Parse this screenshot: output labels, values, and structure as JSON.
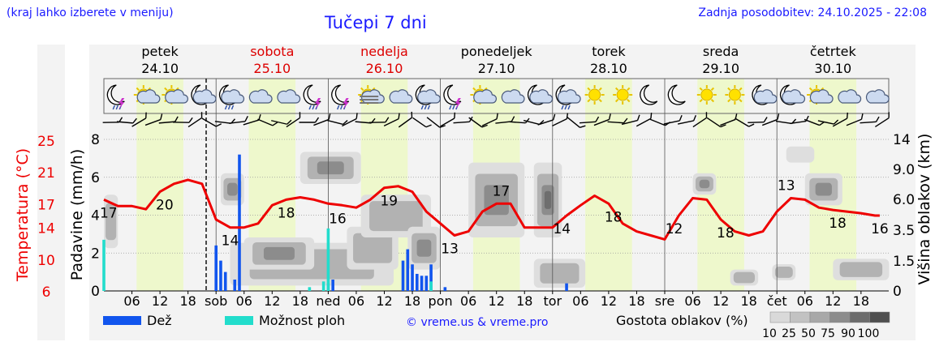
{
  "header": {
    "menu_hint": "(kraj lahko izberete v meniju)",
    "title": "Tučepi 7 dni",
    "updated": "Zadnja posodobitev: 24.10.2025 - 22:08"
  },
  "colors": {
    "weekday": "#000000",
    "weekend": "#dd0000",
    "temp_line": "#ee0000",
    "rain": "#1155ee",
    "showers": "#22ddcc",
    "daylight": "#eef8cc",
    "night": "#f4f4f4",
    "labels_blue": "#1a1aff"
  },
  "days": [
    {
      "name": "petek",
      "date": "24.10",
      "weekend": false
    },
    {
      "name": "sobota",
      "date": "25.10",
      "weekend": true
    },
    {
      "name": "nedelja",
      "date": "26.10",
      "weekend": true
    },
    {
      "name": "ponedeljek",
      "date": "27.10",
      "weekend": false
    },
    {
      "name": "torek",
      "date": "28.10",
      "weekend": false
    },
    {
      "name": "sreda",
      "date": "29.10",
      "weekend": false
    },
    {
      "name": "četrtek",
      "date": "30.10",
      "weekend": false
    }
  ],
  "weather_icons": [
    "moon-thunder-rain",
    "sun-cloud",
    "sun-cloud",
    "moon-cloud",
    "moon-cloud-rain",
    "cloud",
    "cloud",
    "moon-thunder-rain",
    "moon-thunder-rain",
    "sun-fog-cloud",
    "cloud",
    "moon-cloud-rain",
    "moon-thunder-rain",
    "sun-cloud",
    "cloud",
    "moon-cloud",
    "moon-cloud-rain",
    "sun",
    "sun",
    "moon",
    "moon",
    "sun",
    "sun",
    "moon-cloud",
    "moon-cloud",
    "sun-cloud",
    "cloud",
    "cloud"
  ],
  "chart_data": {
    "type": "line",
    "x_ticks": [
      "06",
      "12",
      "18",
      "sob",
      "06",
      "12",
      "18",
      "ned",
      "06",
      "12",
      "18",
      "pon",
      "06",
      "12",
      "18",
      "tor",
      "06",
      "12",
      "18",
      "sre",
      "06",
      "12",
      "18",
      "čet",
      "06",
      "12",
      "18"
    ],
    "y_left_axis": {
      "label": "Padavine (mm/h)",
      "ticks": [
        0,
        2,
        4,
        6,
        8
      ],
      "range": [
        0,
        8
      ]
    },
    "y_temp_axis": {
      "label": "Temperatura (°C)",
      "ticks": [
        6,
        10,
        14,
        17,
        21,
        25
      ]
    },
    "y_right_axis": {
      "label": "Višina oblakov (km)",
      "ticks": [
        "0",
        "1.5",
        "3.5",
        "6.0",
        "9.0",
        "14"
      ]
    },
    "temperature": {
      "hours": [
        0,
        3,
        6,
        9,
        12,
        15,
        18,
        21,
        24,
        27,
        30,
        33,
        36,
        39,
        42,
        45,
        48,
        51,
        54,
        57,
        60,
        63,
        66,
        69,
        72,
        75,
        78,
        81,
        84,
        87,
        90,
        93,
        96,
        99,
        102,
        105,
        108,
        111,
        114,
        117,
        120,
        123,
        126,
        129,
        132,
        135,
        138,
        141,
        144,
        147,
        150,
        153,
        156,
        159,
        162,
        165,
        166
      ],
      "values": [
        17.5,
        16.7,
        16.7,
        16.3,
        18.5,
        19.5,
        20.0,
        19.5,
        15.0,
        14.0,
        14.0,
        14.5,
        16.8,
        17.5,
        17.8,
        17.5,
        17.0,
        16.8,
        16.5,
        17.5,
        19.0,
        19.2,
        18.5,
        16.0,
        14.5,
        13.0,
        13.5,
        16.0,
        17.0,
        17.0,
        14.0,
        14.0,
        14.0,
        15.5,
        16.8,
        18.0,
        17.0,
        14.5,
        13.5,
        13.0,
        12.5,
        15.5,
        17.7,
        17.5,
        15.0,
        13.5,
        13.0,
        13.5,
        16.0,
        17.7,
        17.5,
        16.5,
        16.2,
        16.0,
        15.8,
        15.5,
        15.5
      ],
      "labels": [
        {
          "hour": 1,
          "value": "17"
        },
        {
          "hour": 13,
          "value": "20"
        },
        {
          "hour": 27,
          "value": "14"
        },
        {
          "hour": 39,
          "value": "18"
        },
        {
          "hour": 50,
          "value": "16"
        },
        {
          "hour": 61,
          "value": "19"
        },
        {
          "hour": 74,
          "value": "13"
        },
        {
          "hour": 85,
          "value": "17"
        },
        {
          "hour": 98,
          "value": "14"
        },
        {
          "hour": 109,
          "value": "18"
        },
        {
          "hour": 122,
          "value": "12"
        },
        {
          "hour": 133,
          "value": "18"
        },
        {
          "hour": 146,
          "value": "13"
        },
        {
          "hour": 157,
          "value": "18"
        },
        {
          "hour": 166,
          "value": "16"
        }
      ]
    },
    "rain": {
      "hours": [
        24,
        25,
        26,
        28,
        29,
        48,
        49,
        64,
        65,
        66,
        67,
        68,
        69,
        70,
        73,
        99
      ],
      "values": [
        2.4,
        1.6,
        1.0,
        0.6,
        7.2,
        0.4,
        0.6,
        1.6,
        2.2,
        1.4,
        0.9,
        0.8,
        0.8,
        1.4,
        0.2,
        0.4
      ]
    },
    "showers": {
      "hours": [
        0,
        44,
        47,
        48,
        70
      ],
      "values": [
        2.7,
        0.2,
        0.5,
        3.3,
        0.5
      ]
    },
    "cloud_blobs": [
      {
        "h0": 0,
        "h1": 3,
        "km0": 4,
        "km1": 9,
        "d": 50
      },
      {
        "h0": 25,
        "h1": 30,
        "km0": 8,
        "km1": 11,
        "d": 75
      },
      {
        "h0": 27,
        "h1": 62,
        "km0": 0.5,
        "km1": 4.5,
        "d": 50
      },
      {
        "h0": 30,
        "h1": 45,
        "km0": 2,
        "km1": 5,
        "d": 75
      },
      {
        "h0": 42,
        "h1": 55,
        "km0": 10,
        "km1": 13,
        "d": 75
      },
      {
        "h0": 52,
        "h1": 63,
        "km0": 2,
        "km1": 6,
        "d": 50
      },
      {
        "h0": 55,
        "h1": 70,
        "km0": 5,
        "km1": 9,
        "d": 50
      },
      {
        "h0": 65,
        "h1": 72,
        "km0": 2,
        "km1": 6,
        "d": 75
      },
      {
        "h0": 78,
        "h1": 90,
        "km0": 5,
        "km1": 12,
        "d": 75
      },
      {
        "h0": 92,
        "h1": 98,
        "km0": 5,
        "km1": 12,
        "d": 90
      },
      {
        "h0": 92,
        "h1": 103,
        "km0": 0.3,
        "km1": 3,
        "d": 50
      },
      {
        "h0": 126,
        "h1": 131,
        "km0": 9,
        "km1": 11,
        "d": 75
      },
      {
        "h0": 134,
        "h1": 140,
        "km0": 0.5,
        "km1": 2,
        "d": 50
      },
      {
        "h0": 143,
        "h1": 148,
        "km0": 1,
        "km1": 2.5,
        "d": 50
      },
      {
        "h0": 146,
        "h1": 152,
        "km0": 12,
        "km1": 13.5,
        "d": 25
      },
      {
        "h0": 150,
        "h1": 158,
        "km0": 8,
        "km1": 11,
        "d": 75
      },
      {
        "h0": 156,
        "h1": 168,
        "km0": 1,
        "km1": 3,
        "d": 50
      }
    ]
  },
  "legend": {
    "rain_label": "Dež",
    "showers_label": "Možnost ploh",
    "credit": "© vreme.us & vreme.pro",
    "cloud_density_label": "Gostota oblakov (%)",
    "cloud_density_steps": [
      "10",
      "25",
      "50",
      "75",
      "90",
      "100"
    ]
  }
}
